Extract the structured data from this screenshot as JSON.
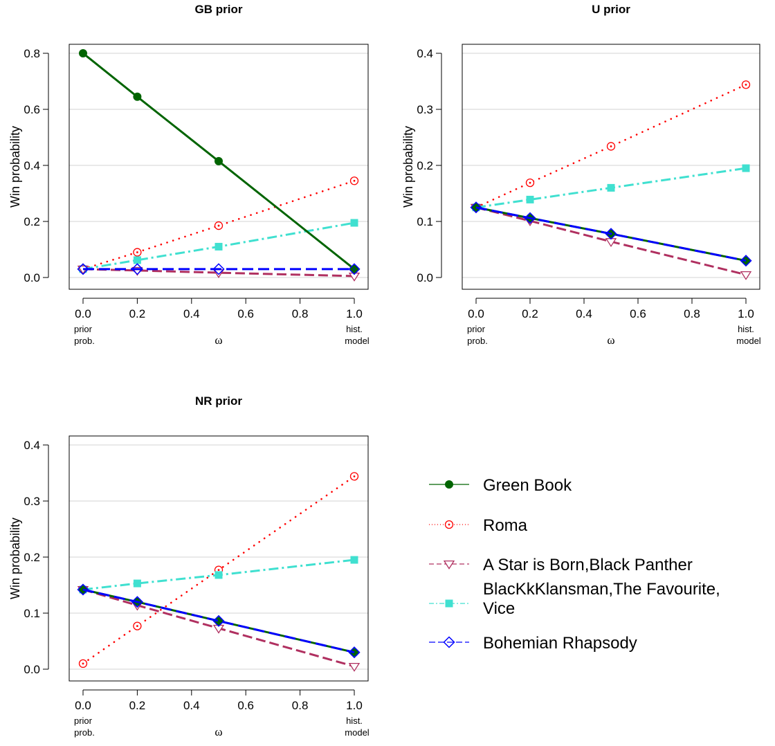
{
  "series_styles": [
    {
      "key": "gb",
      "color": "#006400",
      "dash": "",
      "marker": "filled-circle"
    },
    {
      "key": "roma",
      "color": "#ff0000",
      "dash": "2 7",
      "marker": "open-circle-dot"
    },
    {
      "key": "star",
      "color": "#b03060",
      "dash": "14 6",
      "marker": "open-triangle-down"
    },
    {
      "key": "blac",
      "color": "#40e0d0",
      "dash": "14 5 3 5",
      "marker": "filled-square"
    },
    {
      "key": "boh",
      "color": "#0000ff",
      "dash": "16 7",
      "marker": "open-diamond"
    }
  ],
  "legend": {
    "entries": [
      {
        "key": "gb",
        "lines": [
          "Green Book"
        ]
      },
      {
        "key": "roma",
        "lines": [
          "Roma"
        ]
      },
      {
        "key": "star",
        "lines": [
          "A Star is Born,Black Panther"
        ]
      },
      {
        "key": "blac",
        "lines": [
          "BlacKkKlansman,The Favourite,",
          " Vice"
        ]
      },
      {
        "key": "boh",
        "lines": [
          "Bohemian Rhapsody"
        ]
      }
    ]
  },
  "chart_data": [
    {
      "type": "line",
      "title": "GB prior",
      "ylabel": "Win probability",
      "xlabel": "ω",
      "x_annotations": {
        "left": [
          "prior",
          "prob."
        ],
        "right": [
          "hist.",
          "model"
        ]
      },
      "x": [
        0.0,
        0.2,
        0.5,
        1.0
      ],
      "xticks": [
        "0.0",
        "0.2",
        "0.4",
        "0.6",
        "0.8",
        "1.0"
      ],
      "xlim": [
        0.0,
        1.0
      ],
      "yticks": [
        "0.0",
        "0.2",
        "0.4",
        "0.6",
        "0.8"
      ],
      "ylim": [
        0.0,
        0.8
      ],
      "grid": "horizontal",
      "series": [
        {
          "key": "gb",
          "values": [
            0.8,
            0.645,
            0.415,
            0.03
          ]
        },
        {
          "key": "roma",
          "values": [
            0.03,
            0.09,
            0.185,
            0.345
          ]
        },
        {
          "key": "star",
          "values": [
            0.03,
            0.025,
            0.017,
            0.005
          ]
        },
        {
          "key": "blac",
          "values": [
            0.03,
            0.062,
            0.11,
            0.195
          ]
        },
        {
          "key": "boh",
          "values": [
            0.03,
            0.03,
            0.03,
            0.03
          ]
        }
      ]
    },
    {
      "type": "line",
      "title": "U prior",
      "ylabel": "Win probability",
      "xlabel": "ω",
      "x_annotations": {
        "left": [
          "prior",
          "prob."
        ],
        "right": [
          "hist.",
          "model"
        ]
      },
      "x": [
        0.0,
        0.2,
        0.5,
        1.0
      ],
      "xticks": [
        "0.0",
        "0.2",
        "0.4",
        "0.6",
        "0.8",
        "1.0"
      ],
      "xlim": [
        0.0,
        1.0
      ],
      "yticks": [
        "0.0",
        "0.1",
        "0.2",
        "0.3",
        "0.4"
      ],
      "ylim": [
        0.0,
        0.4
      ],
      "grid": "horizontal",
      "series": [
        {
          "key": "gb",
          "values": [
            0.125,
            0.106,
            0.078,
            0.03
          ]
        },
        {
          "key": "roma",
          "values": [
            0.125,
            0.169,
            0.234,
            0.344
          ]
        },
        {
          "key": "star",
          "values": [
            0.125,
            0.101,
            0.064,
            0.005
          ]
        },
        {
          "key": "blac",
          "values": [
            0.125,
            0.139,
            0.16,
            0.195
          ]
        },
        {
          "key": "boh",
          "values": [
            0.125,
            0.106,
            0.078,
            0.03
          ]
        }
      ]
    },
    {
      "type": "line",
      "title": "NR prior",
      "ylabel": "Win probability",
      "xlabel": "ω",
      "x_annotations": {
        "left": [
          "prior",
          "prob."
        ],
        "right": [
          "hist.",
          "model"
        ]
      },
      "x": [
        0.0,
        0.2,
        0.5,
        1.0
      ],
      "xticks": [
        "0.0",
        "0.2",
        "0.4",
        "0.6",
        "0.8",
        "1.0"
      ],
      "xlim": [
        0.0,
        1.0
      ],
      "yticks": [
        "0.0",
        "0.1",
        "0.2",
        "0.3",
        "0.4"
      ],
      "ylim": [
        0.0,
        0.4
      ],
      "grid": "horizontal",
      "series": [
        {
          "key": "gb",
          "values": [
            0.142,
            0.12,
            0.086,
            0.03
          ]
        },
        {
          "key": "roma",
          "values": [
            0.01,
            0.077,
            0.177,
            0.344
          ]
        },
        {
          "key": "star",
          "values": [
            0.142,
            0.114,
            0.073,
            0.005
          ]
        },
        {
          "key": "blac",
          "values": [
            0.142,
            0.153,
            0.168,
            0.195
          ]
        },
        {
          "key": "boh",
          "values": [
            0.142,
            0.12,
            0.086,
            0.03
          ]
        }
      ]
    }
  ]
}
